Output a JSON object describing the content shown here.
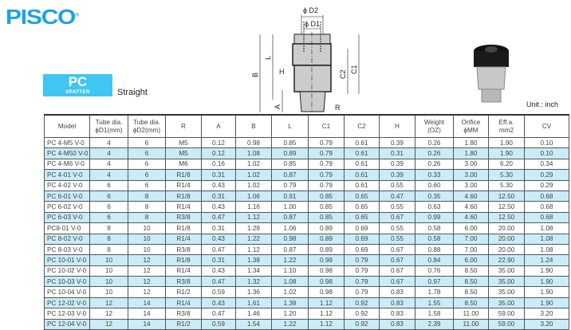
{
  "brand": "PISCO",
  "badge": {
    "title": "PC",
    "subtitle": "SPATTER"
  },
  "product_type": "Straight",
  "unit": "Unit : inch",
  "diagram_labels": {
    "d2": "ϕ D2",
    "d1": "ϕ D1",
    "b": "B",
    "l": "L",
    "h": "H",
    "c1": "C1",
    "c2": "C2",
    "a": "A",
    "r": "R"
  },
  "colors": {
    "brand": "#1aa3e6",
    "badge": "#3fc6f2",
    "row_highlight": "#c9ecf8"
  },
  "table": {
    "headers": [
      [
        "Model",
        ""
      ],
      [
        "Tube dia.",
        "ϕD1(mm)"
      ],
      [
        "Tube dia.",
        "ϕD2(mm)"
      ],
      [
        "R",
        ""
      ],
      [
        "A",
        ""
      ],
      [
        "B",
        ""
      ],
      [
        "L",
        ""
      ],
      [
        "C1",
        ""
      ],
      [
        "C2",
        ""
      ],
      [
        "H",
        ""
      ],
      [
        "Weight",
        "(OZ)"
      ],
      [
        "Orifice",
        "ϕMM"
      ],
      [
        "Eff.a.",
        "mm2"
      ],
      [
        "CV",
        ""
      ]
    ],
    "rows": [
      [
        "PC  4-M5 V-0",
        "4",
        "6",
        "M5",
        "0.12",
        "0.98",
        "0.85",
        "0.79",
        "0.61",
        "0.39",
        "0.26",
        "1.80",
        "1.90",
        "0.10"
      ],
      [
        "PC 4-M50 V-0",
        "4",
        "6",
        "M5",
        "0.12",
        "1.08",
        "0.89",
        "0.79",
        "0.61",
        "0.31",
        "0.26",
        "1.80",
        "1.90",
        "0.10"
      ],
      [
        "PC 4-M6 V-0",
        "4",
        "6",
        "M6",
        "0.16",
        "1.02",
        "0.85",
        "0.79",
        "0.61",
        "0.39",
        "0.26",
        "3.00",
        "6.20",
        "0.34"
      ],
      [
        "PC 4-01 V-0",
        "4",
        "6",
        "R1/8",
        "0.31",
        "1.02",
        "0.87",
        "0.79",
        "0.61",
        "0.39",
        "0.33",
        "3.00",
        "5.30",
        "0.29"
      ],
      [
        "PC 4-02 V-0",
        "6",
        "6",
        "R1/4",
        "0.43",
        "1.02",
        "0.79",
        "0.79",
        "0.61",
        "0.55",
        "0.60",
        "3.00",
        "5.30",
        "0.29"
      ],
      [
        "PC 6-01 V-0",
        "6",
        "8",
        "R1/8",
        "0.31",
        "1.06",
        "0.91",
        "0.85",
        "0.65",
        "0.47",
        "0.35",
        "4.60",
        "12.50",
        "0.68"
      ],
      [
        "PC 6-02 V-0",
        "6",
        "8",
        "R1/4",
        "0.43",
        "1.16",
        "1.00",
        "0.85",
        "0.65",
        "0.55",
        "0.63",
        "4.60",
        "12.50",
        "0.68"
      ],
      [
        "PC 6-03 V-0",
        "6",
        "8",
        "R3/8",
        "0.47",
        "1.12",
        "0.87",
        "0.85",
        "0.65",
        "0.67",
        "0.99",
        "4.60",
        "12.50",
        "0.68"
      ],
      [
        "PC8-01 V-0",
        "8",
        "10",
        "R1/8",
        "0.31",
        "1.28",
        "1.06",
        "0.89",
        "0.69",
        "0.55",
        "0.58",
        "6.00",
        "20.00",
        "1.08"
      ],
      [
        "PC 8-02 V-0",
        "8",
        "10",
        "R1/4",
        "0.43",
        "1.22",
        "0.98",
        "0.89",
        "0.69",
        "0.55",
        "0.58",
        "7.00",
        "20.00",
        "1.08"
      ],
      [
        "PC 8-03 V-0",
        "8",
        "10",
        "R3/8",
        "0.47",
        "1.12",
        "0.87",
        "0.89",
        "0.69",
        "0.67",
        "0.88",
        "7.00",
        "20.00",
        "1.08"
      ],
      [
        "PC 10-01 V-0",
        "10",
        "12",
        "R1/8",
        "0.31",
        "1.38",
        "1.22",
        "0.98",
        "0.79",
        "0.67",
        "0.84",
        "6.00",
        "22.90",
        "1.24"
      ],
      [
        "PC 10-02 V-0",
        "10",
        "12",
        "R1/4",
        "0.43",
        "1.34",
        "1.10",
        "0.98",
        "0.79",
        "0.67",
        "0.76",
        "8.50",
        "35.00",
        "1.90"
      ],
      [
        "PC 10-03 V-0",
        "10",
        "12",
        "R3/8",
        "0.47",
        "1.32",
        "1.08",
        "0.98",
        "0.79",
        "0.67",
        "0.97",
        "8.50",
        "35.00",
        "1.90"
      ],
      [
        "PC 10-04 V-0",
        "10",
        "12",
        "R1/2",
        "0.59",
        "1.36",
        "1.02",
        "0.98",
        "0.79",
        "0.83",
        "1.78",
        "8.50",
        "35.00",
        "1.90"
      ],
      [
        "PC 12-02 V-0",
        "12",
        "14",
        "R1/4",
        "0.43",
        "1.61",
        "1.38",
        "1.12",
        "0.92",
        "0.83",
        "1.55",
        "8.50",
        "35.00",
        "1.90"
      ],
      [
        "PC 12-03 V-0",
        "12",
        "14",
        "R3/8",
        "0.47",
        "1.46",
        "1.20",
        "1.12",
        "0.92",
        "0.83",
        "1.58",
        "11.00",
        "59.00",
        "3.20"
      ],
      [
        "PC 12-04 V-0",
        "12",
        "14",
        "R1/2",
        "0.59",
        "1.54",
        "1.22",
        "1.12",
        "0.92",
        "0.83",
        "2.39",
        "11.00",
        "59.00",
        "3.20"
      ]
    ]
  }
}
